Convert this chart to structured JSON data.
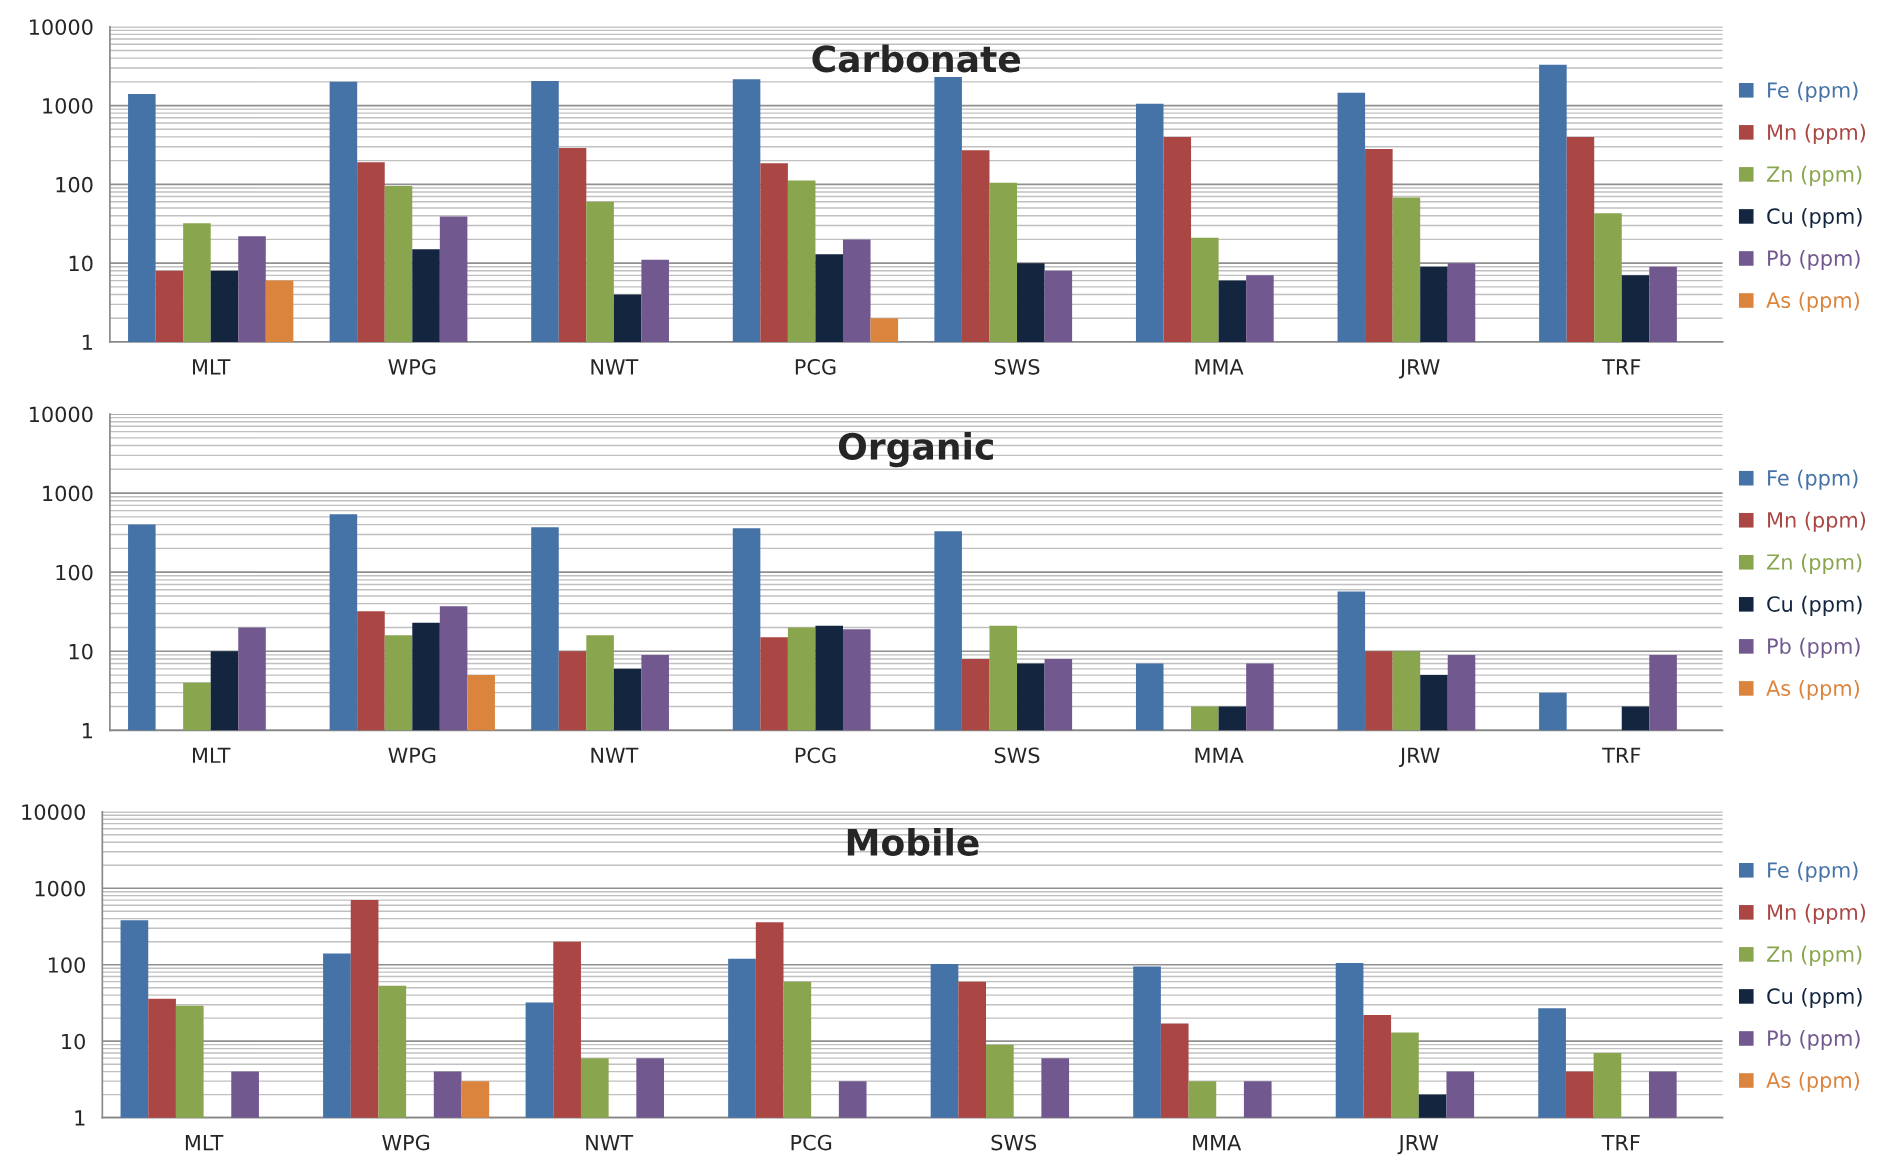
{
  "chart_data": [
    {
      "type": "bar",
      "title": "Carbonate",
      "categories": [
        "MLT",
        "WPG",
        "NWT",
        "PCG",
        "SWS",
        "MMA",
        "JRW",
        "TRF"
      ],
      "log": true,
      "ylim": [
        1,
        10000
      ],
      "yticks": [
        1,
        10,
        100,
        1000,
        10000
      ],
      "grid": "y",
      "legend": "right",
      "series": [
        {
          "name": "Fe (ppm)",
          "color": "#4572a7",
          "values": [
            1400,
            2000,
            2050,
            2150,
            2300,
            1050,
            1450,
            3300
          ]
        },
        {
          "name": "Mn (ppm)",
          "color": "#aa4643",
          "values": [
            8,
            190,
            290,
            185,
            270,
            400,
            280,
            400
          ]
        },
        {
          "name": "Zn (ppm)",
          "color": "#89a54e",
          "values": [
            32,
            95,
            60,
            112,
            105,
            21,
            68,
            43
          ]
        },
        {
          "name": "Cu (ppm)",
          "color": "#13253f",
          "values": [
            8,
            15,
            4,
            13,
            10,
            6,
            9,
            7
          ]
        },
        {
          "name": "Pb (ppm)",
          "color": "#71588f",
          "values": [
            22,
            39,
            11,
            20,
            8,
            7,
            10,
            9
          ]
        },
        {
          "name": "As (ppm)",
          "color": "#db843d",
          "values": [
            6,
            null,
            null,
            2,
            null,
            null,
            null,
            null
          ]
        }
      ]
    },
    {
      "type": "bar",
      "title": "Organic",
      "categories": [
        "MLT",
        "WPG",
        "NWT",
        "PCG",
        "SWS",
        "MMA",
        "JRW",
        "TRF"
      ],
      "log": true,
      "ylim": [
        1,
        10000
      ],
      "yticks": [
        1,
        10,
        100,
        1000,
        10000
      ],
      "grid": "y",
      "legend": "right",
      "series": [
        {
          "name": "Fe (ppm)",
          "color": "#4572a7",
          "values": [
            400,
            540,
            370,
            360,
            330,
            7,
            57,
            3
          ]
        },
        {
          "name": "Mn (ppm)",
          "color": "#aa4643",
          "values": [
            null,
            32,
            10,
            15,
            8,
            null,
            10,
            null
          ]
        },
        {
          "name": "Zn (ppm)",
          "color": "#89a54e",
          "values": [
            4,
            16,
            16,
            20,
            21,
            2,
            10,
            null
          ]
        },
        {
          "name": "Cu (ppm)",
          "color": "#13253f",
          "values": [
            10,
            23,
            6,
            21,
            7,
            2,
            5,
            2
          ]
        },
        {
          "name": "Pb (ppm)",
          "color": "#71588f",
          "values": [
            20,
            37,
            9,
            19,
            8,
            7,
            9,
            9
          ]
        },
        {
          "name": "As (ppm)",
          "color": "#db843d",
          "values": [
            null,
            5,
            null,
            null,
            null,
            null,
            null,
            null
          ]
        }
      ]
    },
    {
      "type": "bar",
      "title": "Mobile",
      "categories": [
        "MLT",
        "WPG",
        "NWT",
        "PCG",
        "SWS",
        "MMA",
        "JRW",
        "TRF"
      ],
      "log": true,
      "ylim": [
        1,
        10000
      ],
      "yticks": [
        1,
        10,
        100,
        1000,
        10000
      ],
      "grid": "y",
      "legend": "right",
      "series": [
        {
          "name": "Fe (ppm)",
          "color": "#4572a7",
          "values": [
            380,
            140,
            32,
            120,
            102,
            95,
            105,
            27
          ]
        },
        {
          "name": "Mn (ppm)",
          "color": "#aa4643",
          "values": [
            36,
            700,
            200,
            360,
            60,
            17,
            22,
            4
          ]
        },
        {
          "name": "Zn (ppm)",
          "color": "#89a54e",
          "values": [
            29,
            53,
            6,
            60,
            9,
            3,
            13,
            7
          ]
        },
        {
          "name": "Cu (ppm)",
          "color": "#13253f",
          "values": [
            null,
            null,
            null,
            null,
            null,
            null,
            2,
            null
          ]
        },
        {
          "name": "Pb (ppm)",
          "color": "#71588f",
          "values": [
            4,
            4,
            6,
            3,
            6,
            3,
            4,
            4
          ]
        },
        {
          "name": "As (ppm)",
          "color": "#db843d",
          "values": [
            null,
            3,
            null,
            null,
            null,
            null,
            null,
            null
          ]
        }
      ]
    }
  ]
}
